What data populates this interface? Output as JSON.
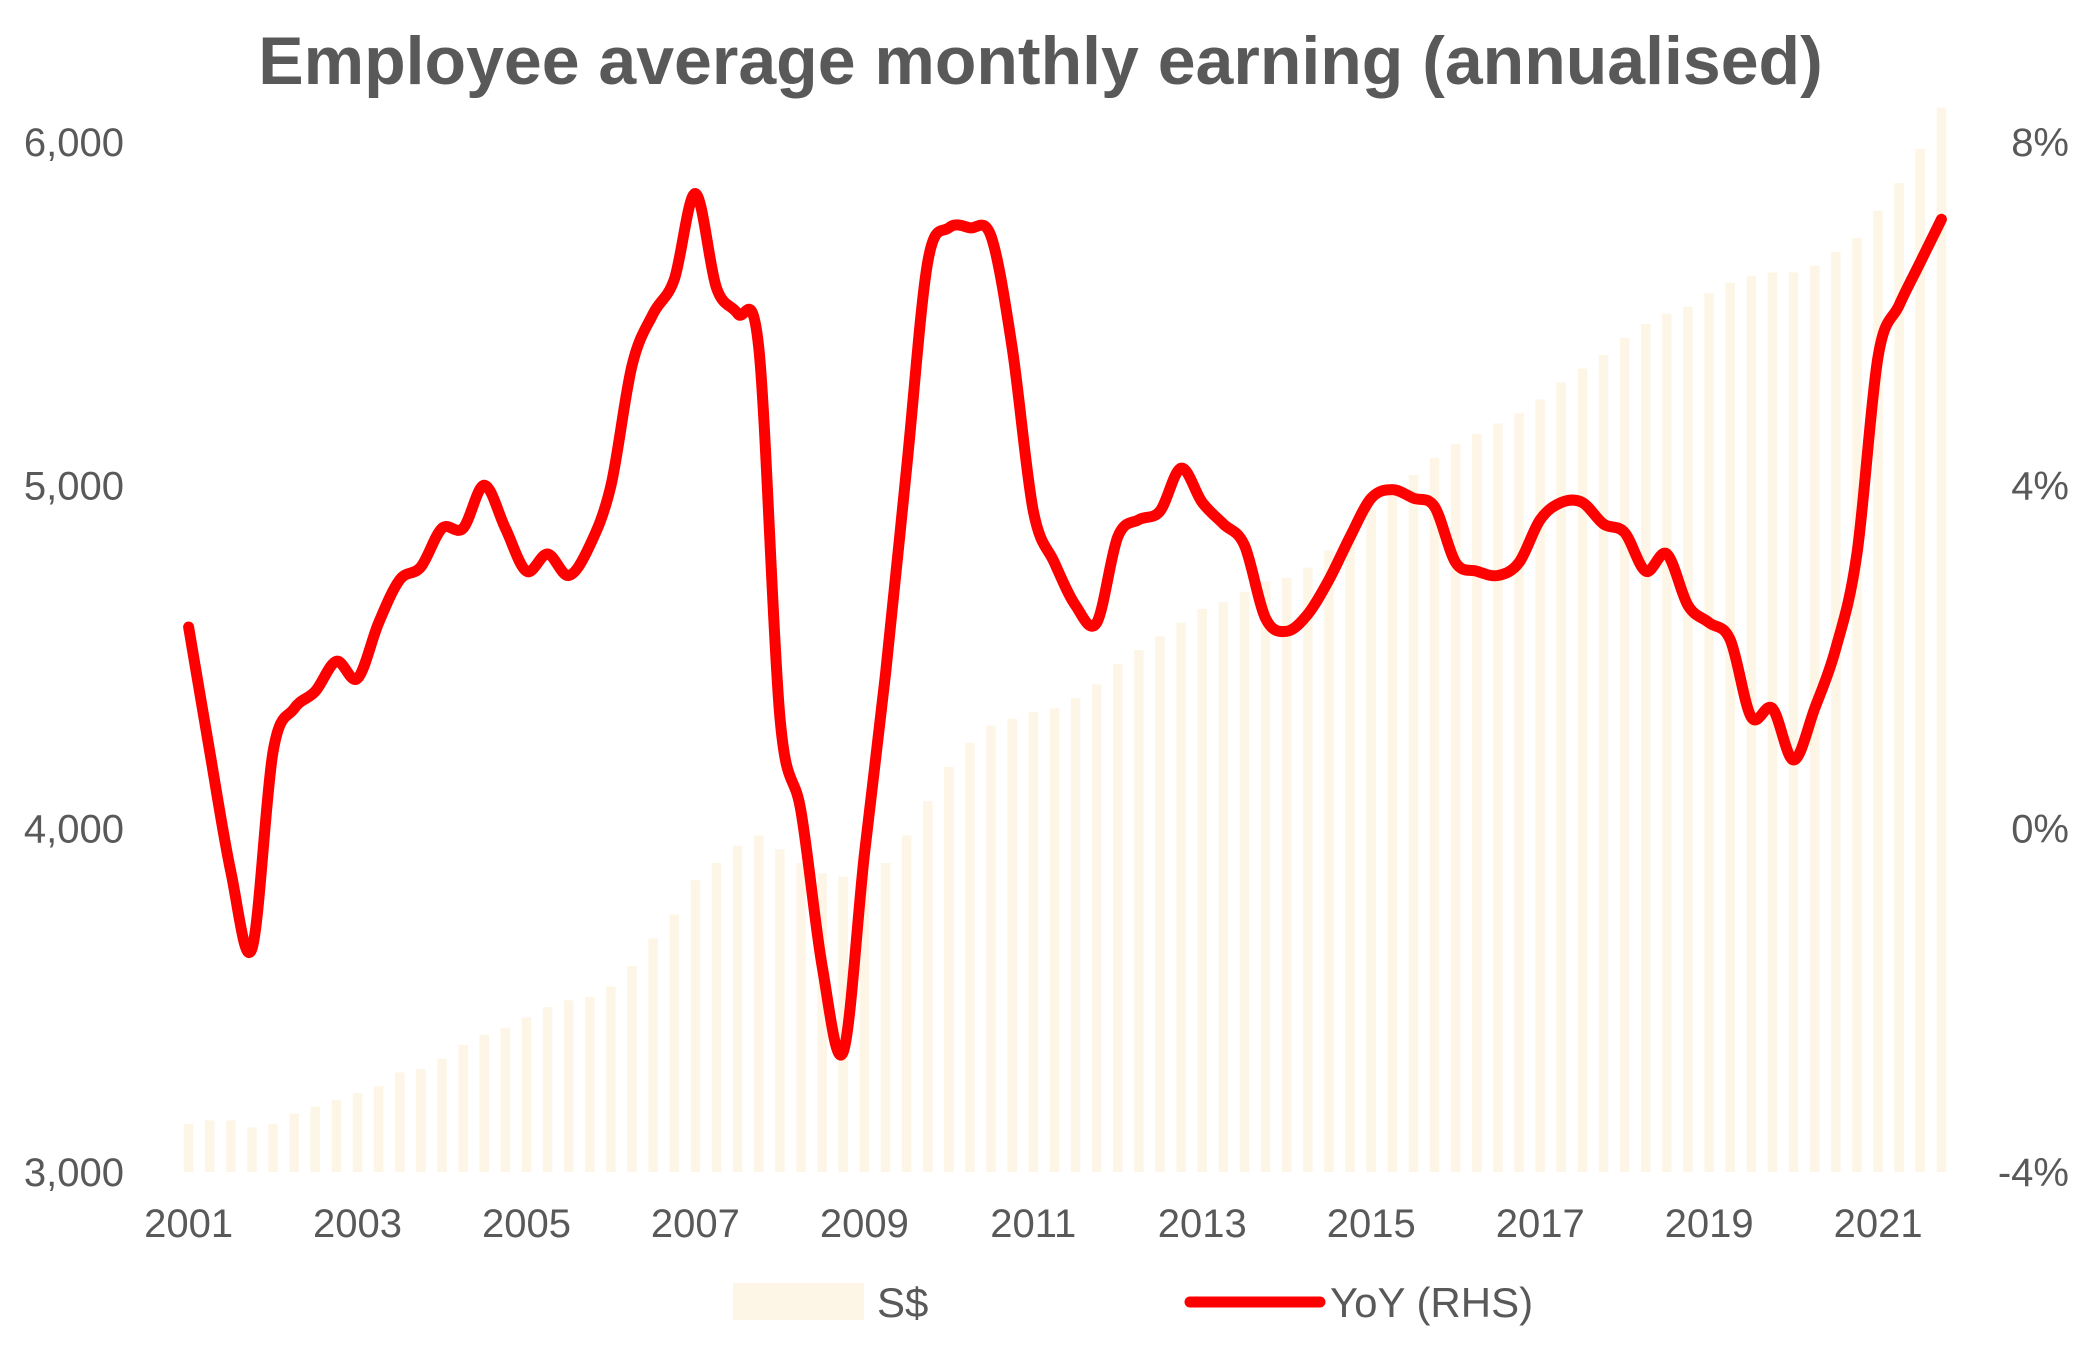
{
  "chart_data": {
    "type": "bar+line",
    "title": "Employee average monthly earning (annualised)",
    "x_tick_labels": [
      "2001",
      "2003",
      "2005",
      "2007",
      "2009",
      "2011",
      "2013",
      "2015",
      "2017",
      "2019",
      "2021"
    ],
    "x_range": [
      2001.0,
      2021.75
    ],
    "y_left": {
      "range": [
        3000,
        6000
      ],
      "ticks": [
        3000,
        4000,
        5000,
        6000
      ],
      "tick_labels": [
        "3,000",
        "4,000",
        "5,000",
        "6,000"
      ]
    },
    "y_right": {
      "range": [
        -4,
        8
      ],
      "ticks": [
        -4,
        0,
        4,
        8
      ],
      "tick_labels": [
        "-4%",
        "0%",
        "4%",
        "8%"
      ],
      "unit": "%"
    },
    "legend": {
      "placement": "bottom",
      "entries": [
        "S$",
        "YoY (RHS)"
      ]
    },
    "grid": false,
    "colors": {
      "bars": "#fdf6e7",
      "line": "#ff0000",
      "text": "#595959"
    },
    "series": [
      {
        "name": "S$",
        "type": "bar",
        "axis": "left",
        "x": [
          2001.0,
          2001.25,
          2001.5,
          2001.75,
          2002.0,
          2002.25,
          2002.5,
          2002.75,
          2003.0,
          2003.25,
          2003.5,
          2003.75,
          2004.0,
          2004.25,
          2004.5,
          2004.75,
          2005.0,
          2005.25,
          2005.5,
          2005.75,
          2006.0,
          2006.25,
          2006.5,
          2006.75,
          2007.0,
          2007.25,
          2007.5,
          2007.75,
          2008.0,
          2008.25,
          2008.5,
          2008.75,
          2009.0,
          2009.25,
          2009.5,
          2009.75,
          2010.0,
          2010.25,
          2010.5,
          2010.75,
          2011.0,
          2011.25,
          2011.5,
          2011.75,
          2012.0,
          2012.25,
          2012.5,
          2012.75,
          2013.0,
          2013.25,
          2013.5,
          2013.75,
          2014.0,
          2014.25,
          2014.5,
          2014.75,
          2015.0,
          2015.25,
          2015.5,
          2015.75,
          2016.0,
          2016.25,
          2016.5,
          2016.75,
          2017.0,
          2017.25,
          2017.5,
          2017.75,
          2018.0,
          2018.25,
          2018.5,
          2018.75,
          2019.0,
          2019.25,
          2019.5,
          2019.75,
          2020.0,
          2020.25,
          2020.5,
          2020.75,
          2021.0,
          2021.25,
          2021.5,
          2021.75
        ],
        "values": [
          3140,
          3150,
          3150,
          3130,
          3140,
          3170,
          3190,
          3210,
          3230,
          3250,
          3290,
          3300,
          3330,
          3370,
          3400,
          3420,
          3450,
          3480,
          3500,
          3510,
          3540,
          3600,
          3680,
          3750,
          3850,
          3900,
          3950,
          3980,
          3940,
          3900,
          3870,
          3860,
          3870,
          3900,
          3980,
          4080,
          4180,
          4250,
          4300,
          4320,
          4340,
          4350,
          4380,
          4420,
          4480,
          4520,
          4560,
          4600,
          4640,
          4660,
          4690,
          4720,
          4730,
          4760,
          4810,
          4870,
          4930,
          4980,
          5030,
          5080,
          5120,
          5150,
          5180,
          5210,
          5250,
          5300,
          5340,
          5380,
          5430,
          5470,
          5500,
          5520,
          5560,
          5590,
          5610,
          5620,
          5620,
          5640,
          5680,
          5720,
          5800,
          5880,
          5980,
          6100
        ]
      },
      {
        "name": "YoY (RHS)",
        "type": "line",
        "axis": "right",
        "x": [
          2001.0,
          2001.25,
          2001.5,
          2001.75,
          2002.0,
          2002.25,
          2002.5,
          2002.75,
          2003.0,
          2003.25,
          2003.5,
          2003.75,
          2004.0,
          2004.25,
          2004.5,
          2004.75,
          2005.0,
          2005.25,
          2005.5,
          2005.75,
          2006.0,
          2006.25,
          2006.5,
          2006.75,
          2007.0,
          2007.25,
          2007.5,
          2007.75,
          2008.0,
          2008.25,
          2008.5,
          2008.75,
          2009.0,
          2009.25,
          2009.5,
          2009.75,
          2010.0,
          2010.25,
          2010.5,
          2010.75,
          2011.0,
          2011.25,
          2011.5,
          2011.75,
          2012.0,
          2012.25,
          2012.5,
          2012.75,
          2013.0,
          2013.25,
          2013.5,
          2013.75,
          2014.0,
          2014.25,
          2014.5,
          2014.75,
          2015.0,
          2015.25,
          2015.5,
          2015.75,
          2016.0,
          2016.25,
          2016.5,
          2016.75,
          2017.0,
          2017.25,
          2017.5,
          2017.75,
          2018.0,
          2018.25,
          2018.5,
          2018.75,
          2019.0,
          2019.25,
          2019.5,
          2019.75,
          2020.0,
          2020.25,
          2020.5,
          2020.75,
          2021.0,
          2021.25,
          2021.5,
          2021.75
        ],
        "values": [
          2.35,
          0.9,
          -0.5,
          -1.4,
          0.9,
          1.4,
          1.6,
          1.95,
          1.75,
          2.4,
          2.9,
          3.05,
          3.5,
          3.5,
          4.0,
          3.5,
          3.0,
          3.2,
          2.95,
          3.3,
          4.0,
          5.4,
          6.0,
          6.4,
          7.4,
          6.3,
          6.0,
          5.6,
          1.3,
          0.2,
          -1.6,
          -2.6,
          -0.3,
          1.8,
          4.2,
          6.6,
          7.0,
          7.0,
          6.9,
          5.6,
          3.7,
          3.1,
          2.6,
          2.4,
          3.4,
          3.6,
          3.7,
          4.2,
          3.8,
          3.55,
          3.3,
          2.45,
          2.3,
          2.5,
          2.9,
          3.4,
          3.85,
          3.95,
          3.85,
          3.75,
          3.1,
          3.0,
          2.95,
          3.1,
          3.6,
          3.8,
          3.8,
          3.55,
          3.45,
          3.0,
          3.2,
          2.6,
          2.4,
          2.2,
          1.3,
          1.4,
          0.8,
          1.4,
          2.1,
          3.2,
          5.5,
          6.1,
          6.6,
          7.1
        ]
      }
    ]
  }
}
